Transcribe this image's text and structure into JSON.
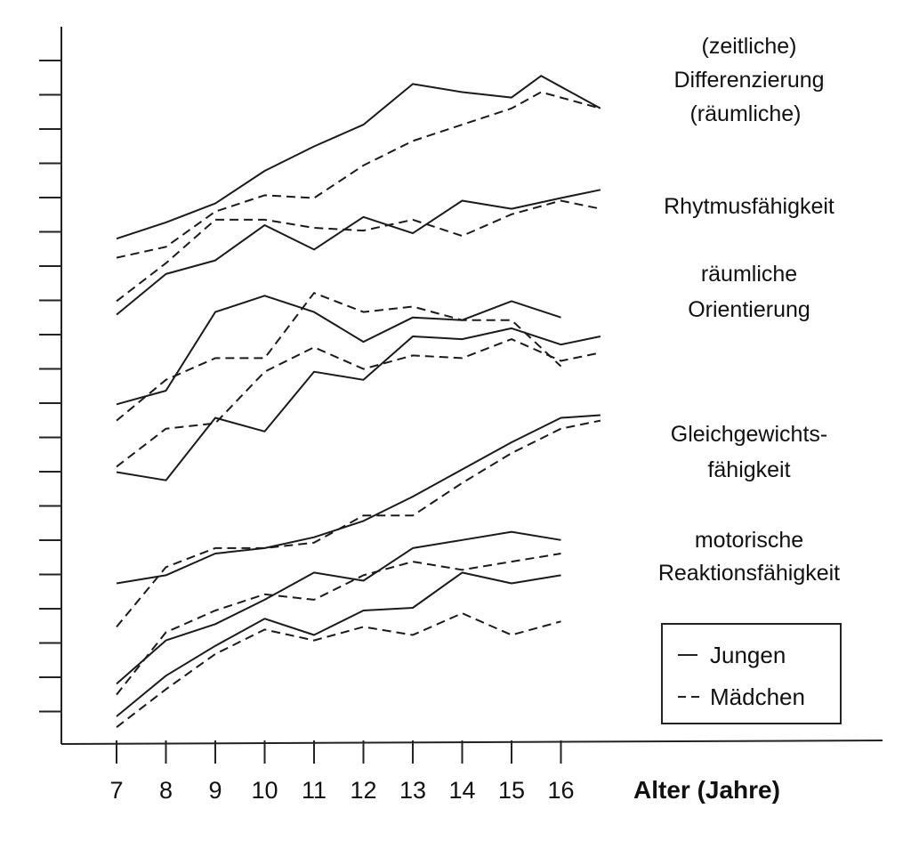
{
  "chart_data": {
    "type": "line",
    "xlabel": "Alter (Jahre)",
    "ylabel": "",
    "title": "",
    "grid": false,
    "legend_position": "bottom-right",
    "x_ticks": [
      7,
      8,
      9,
      10,
      11,
      12,
      13,
      14,
      15,
      16
    ],
    "y_ticks_labeled": false,
    "legend": {
      "entries": [
        {
          "label": "Jungen",
          "style": "solid"
        },
        {
          "label": "Mädchen",
          "style": "dashed"
        }
      ]
    },
    "annotations": {
      "differenzierung": [
        "(zeitliche)",
        "Differenzierung",
        "(räumliche)"
      ],
      "rhythmus": [
        "Rhytmusfähigkeit"
      ],
      "orientierung": [
        "räumliche",
        "Orientierung"
      ],
      "gleichgewicht": [
        "Gleichgewichts-",
        "fähigkeit"
      ],
      "reaktion": [
        "motorische",
        "Reaktionsfähigkeit"
      ]
    },
    "series": [
      {
        "name": "Jungen",
        "style": "solid",
        "x": [
          7,
          8,
          9,
          10,
          11,
          12,
          13,
          14,
          15,
          15.6,
          16.8
        ],
        "y": [
          176,
          182,
          189,
          201,
          210,
          218,
          233,
          230,
          228,
          236,
          224
        ]
      },
      {
        "name": "Mädchen",
        "style": "dashed",
        "x": [
          7,
          8,
          9,
          10,
          11,
          12,
          13,
          14,
          15,
          15.6,
          16.8
        ],
        "y": [
          169,
          173,
          186,
          192,
          191,
          203,
          212,
          218,
          224,
          230,
          224
        ]
      },
      {
        "name": "Jungen",
        "style": "solid",
        "x": [
          7,
          8,
          9,
          10,
          11,
          12,
          13,
          14,
          15,
          16,
          16.8
        ],
        "y": [
          148,
          163,
          168,
          181,
          172,
          184,
          178,
          190,
          187,
          191,
          194
        ]
      },
      {
        "name": "Mädchen",
        "style": "dashed",
        "x": [
          7,
          8,
          9,
          10,
          11,
          12,
          13,
          14,
          15,
          16,
          16.8
        ],
        "y": [
          153,
          167,
          183,
          183,
          180,
          179,
          183,
          177,
          185,
          190,
          187
        ]
      },
      {
        "name": "Jungen",
        "style": "solid",
        "x": [
          7,
          8,
          9,
          10,
          11,
          12,
          13,
          14,
          15,
          16
        ],
        "y": [
          115,
          120,
          149,
          155,
          149,
          138,
          147,
          146,
          153,
          147
        ]
      },
      {
        "name": "Mädchen",
        "style": "dashed",
        "x": [
          7,
          8,
          9,
          10,
          11,
          12,
          13,
          14,
          15,
          16
        ],
        "y": [
          109,
          124,
          132,
          132,
          156,
          149,
          151,
          146,
          146,
          129
        ]
      },
      {
        "name": "Jungen",
        "style": "solid",
        "x": [
          7,
          8,
          9,
          10,
          11,
          12,
          13,
          14,
          15,
          16,
          16.8
        ],
        "y": [
          90,
          87,
          110,
          105,
          127,
          124,
          140,
          139,
          143,
          137,
          140
        ]
      },
      {
        "name": "Mädchen",
        "style": "dashed",
        "x": [
          7,
          8,
          9,
          10,
          11,
          12,
          13,
          14,
          15,
          16,
          16.8
        ],
        "y": [
          92,
          106,
          108,
          127,
          136,
          128,
          133,
          132,
          139,
          131,
          134
        ]
      },
      {
        "name": "Jungen",
        "style": "solid",
        "x": [
          7,
          8,
          9,
          10,
          11,
          12,
          13,
          14,
          15,
          16,
          16.8
        ],
        "y": [
          49,
          52,
          60,
          62,
          66,
          72,
          81,
          91,
          101,
          110,
          111
        ]
      },
      {
        "name": "Mädchen",
        "style": "dashed",
        "x": [
          7,
          8,
          9,
          10,
          11,
          12,
          13,
          14,
          15,
          16,
          16.8
        ],
        "y": [
          33,
          55,
          62,
          62,
          64,
          74,
          74,
          86,
          97,
          106,
          109
        ]
      },
      {
        "name": "Jungen",
        "style": "solid",
        "x": [
          7,
          8,
          9,
          10,
          11,
          12,
          13,
          14,
          15,
          16
        ],
        "y": [
          12,
          28,
          34,
          43,
          53,
          50,
          62,
          65,
          68,
          65
        ]
      },
      {
        "name": "Mädchen",
        "style": "dashed",
        "x": [
          7,
          8,
          9,
          10,
          11,
          12,
          13,
          14,
          15,
          16
        ],
        "y": [
          8,
          31,
          39,
          45,
          43,
          52,
          57,
          54,
          57,
          60
        ]
      },
      {
        "name": "Jungen",
        "style": "solid",
        "x": [
          7,
          8,
          9,
          10,
          11,
          12,
          13,
          14,
          15,
          16
        ],
        "y": [
          0,
          15,
          26,
          36,
          30,
          39,
          40,
          53,
          49,
          52
        ]
      },
      {
        "name": "Mädchen",
        "style": "dashed",
        "x": [
          7,
          8,
          9,
          10,
          11,
          12,
          13,
          14,
          15,
          16
        ],
        "y": [
          -4,
          10,
          23,
          32,
          28,
          33,
          30,
          38,
          30,
          35
        ]
      }
    ]
  }
}
